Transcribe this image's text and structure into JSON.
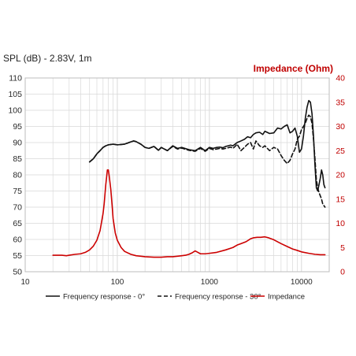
{
  "chart_data": {
    "type": "line",
    "title_left": "SPL (dB) - 2.83V, 1m",
    "title_right": "Impedance (Ohm)",
    "x_scale": "log",
    "xlim": [
      10,
      20000
    ],
    "ylim_left": [
      50,
      110
    ],
    "ylim_right": [
      0,
      40
    ],
    "x_ticks": [
      10,
      100,
      1000,
      10000
    ],
    "x_tick_labels": [
      "10",
      "100",
      "1000",
      "10000"
    ],
    "y_left_ticks": [
      50,
      55,
      60,
      65,
      70,
      75,
      80,
      85,
      90,
      95,
      100,
      105,
      110
    ],
    "y_left_tick_labels": [
      "50",
      "55",
      "60",
      "65",
      "70",
      "75",
      "80",
      "85",
      "90",
      "95",
      "100",
      "105",
      "110"
    ],
    "y_right_ticks": [
      0,
      5,
      10,
      15,
      20,
      25,
      30,
      35,
      40
    ],
    "y_right_tick_labels": [
      "0",
      "5",
      "10",
      "15",
      "20",
      "25",
      "30",
      "35",
      "40"
    ],
    "grid": true,
    "legend_position": "bottom",
    "colors": {
      "freq_0": "#111111",
      "freq_30": "#111111",
      "impedance": "#cc0000",
      "grid": "#d9d9d9"
    },
    "series": [
      {
        "name": "Frequency response - 0°",
        "axis": "left",
        "style": "solid",
        "x": [
          50,
          55,
          60,
          65,
          70,
          75,
          80,
          90,
          100,
          120,
          140,
          150,
          160,
          180,
          200,
          220,
          250,
          280,
          300,
          350,
          400,
          450,
          500,
          600,
          700,
          800,
          900,
          1000,
          1100,
          1200,
          1300,
          1400,
          1500,
          1600,
          1700,
          1800,
          1900,
          2000,
          2200,
          2400,
          2600,
          2800,
          3000,
          3200,
          3500,
          3800,
          4000,
          4500,
          5000,
          5500,
          6000,
          6500,
          7000,
          7500,
          8000,
          8500,
          9000,
          9500,
          10000,
          10500,
          11000,
          11500,
          12000,
          12500,
          13000,
          13500,
          14000,
          14500,
          15000,
          15500,
          16000,
          16500,
          17000,
          17500,
          18000
        ],
        "y": [
          84,
          85,
          86.5,
          87.5,
          88.5,
          89,
          89.3,
          89.5,
          89.3,
          89.5,
          90.2,
          90.5,
          90.3,
          89.5,
          88.5,
          88.2,
          88.8,
          87.6,
          88.5,
          87.5,
          89,
          88.2,
          88.5,
          87.8,
          87.5,
          88.5,
          87.5,
          88.5,
          88.2,
          88.5,
          88.6,
          88.4,
          88.8,
          89,
          89.2,
          89,
          89.5,
          90,
          90.5,
          91,
          91.8,
          91.5,
          92.5,
          93,
          93.2,
          92.5,
          93.5,
          92.8,
          93,
          94.5,
          94.2,
          95,
          95.5,
          93,
          93.5,
          94.5,
          92,
          87,
          88,
          92,
          97.5,
          101,
          103,
          102.5,
          99,
          92,
          83,
          76,
          75,
          77,
          79,
          81.5,
          80,
          77,
          76
        ]
      },
      {
        "name": "Frequency response - 30°",
        "axis": "left",
        "style": "dashed",
        "x": [
          50,
          55,
          60,
          65,
          70,
          75,
          80,
          90,
          100,
          120,
          140,
          150,
          160,
          180,
          200,
          220,
          250,
          280,
          300,
          350,
          400,
          450,
          500,
          600,
          700,
          800,
          900,
          1000,
          1100,
          1200,
          1300,
          1400,
          1500,
          1600,
          1700,
          1800,
          1900,
          2000,
          2200,
          2400,
          2600,
          2800,
          3000,
          3200,
          3500,
          3800,
          4000,
          4500,
          5000,
          5500,
          6000,
          6500,
          7000,
          7500,
          8000,
          8500,
          9000,
          9500,
          10000,
          10500,
          11000,
          11500,
          12000,
          12500,
          13000,
          13500,
          14000,
          14500,
          15000,
          15500,
          16000,
          16500,
          17000,
          17500,
          18000
        ],
        "y": [
          84,
          85,
          86.5,
          87.5,
          88.5,
          89,
          89.3,
          89.5,
          89.3,
          89.5,
          90.2,
          90.5,
          90.3,
          89.5,
          88.5,
          88.2,
          88.8,
          87.6,
          88.5,
          87.5,
          88.8,
          88,
          88.3,
          87.6,
          87.3,
          88.2,
          87.3,
          88.2,
          87.8,
          88,
          88.2,
          88,
          88.2,
          88.4,
          88.6,
          88.2,
          88.8,
          89.5,
          87.5,
          88.5,
          89.5,
          90,
          88,
          90.5,
          89,
          88.5,
          89,
          87.5,
          88.5,
          88,
          86,
          84.5,
          83.5,
          84.5,
          86.5,
          88,
          91,
          92,
          94,
          95,
          96,
          97.5,
          98.5,
          98,
          96,
          91,
          85,
          78.5,
          76,
          74.5,
          73.5,
          72.5,
          71,
          70.5,
          70
        ]
      },
      {
        "name": "Impedance",
        "axis": "right",
        "style": "solid",
        "x": [
          20,
          22,
          25,
          28,
          30,
          35,
          40,
          45,
          50,
          55,
          60,
          65,
          70,
          72,
          75,
          78,
          80,
          82,
          85,
          88,
          90,
          95,
          100,
          110,
          120,
          140,
          160,
          180,
          200,
          250,
          300,
          350,
          400,
          450,
          500,
          550,
          600,
          650,
          700,
          750,
          800,
          900,
          1000,
          1200,
          1500,
          1800,
          2000,
          2200,
          2500,
          2800,
          3000,
          3300,
          3600,
          4000,
          4400,
          5000,
          6000,
          7000,
          8000,
          9000,
          10000,
          12000,
          14000,
          16000,
          18000
        ],
        "y": [
          3.4,
          3.4,
          3.4,
          3.3,
          3.4,
          3.6,
          3.7,
          4.0,
          4.5,
          5.3,
          6.5,
          8.5,
          12,
          14,
          18,
          21,
          21,
          19.5,
          17,
          13.5,
          11,
          8,
          6.5,
          5,
          4.2,
          3.6,
          3.3,
          3.2,
          3.1,
          3.0,
          3.0,
          3.1,
          3.1,
          3.2,
          3.3,
          3.4,
          3.6,
          3.9,
          4.3,
          4.0,
          3.7,
          3.7,
          3.8,
          4.0,
          4.5,
          5.0,
          5.5,
          5.8,
          6.2,
          6.8,
          7.0,
          7.1,
          7.1,
          7.2,
          7.0,
          6.6,
          5.8,
          5.2,
          4.7,
          4.4,
          4.1,
          3.8,
          3.6,
          3.5,
          3.5
        ]
      }
    ]
  }
}
